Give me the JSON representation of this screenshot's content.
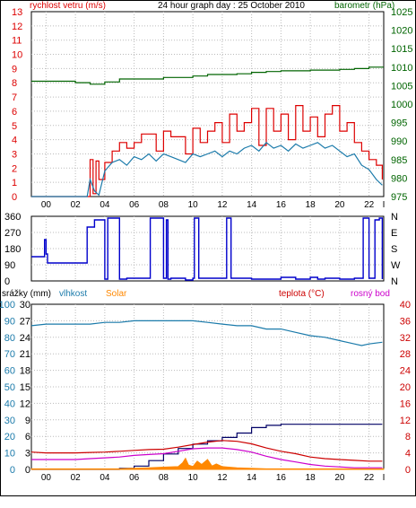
{
  "chart_data": [
    {
      "id": "wind_pressure",
      "type": "line",
      "title": "24 hour graph day : 25 October 2010",
      "ylabel_left": "rychlost vetru (m/s)",
      "ylabel_right": "barometr (hPa)",
      "ylim_left": [
        0,
        13
      ],
      "ylim_right": [
        975,
        1025
      ],
      "left_ticks": [
        "0",
        "1",
        "2",
        "3",
        "4",
        "5",
        "6",
        "7",
        "8",
        "9",
        "10",
        "11",
        "12",
        "13"
      ],
      "right_ticks": [
        "975",
        "980",
        "985",
        "990",
        "995",
        "1000",
        "1005",
        "1010",
        "1015",
        "1020",
        "1025"
      ],
      "x_ticks": [
        "00",
        "02",
        "04",
        "06",
        "08",
        "10",
        "12",
        "14",
        "16",
        "18",
        "20",
        "22",
        "I"
      ],
      "colors": {
        "gust": "#dd0000",
        "wind": "#1a7aaa",
        "pressure": "#006400",
        "left_axis": "#dd0000",
        "right_axis": "#006400"
      },
      "series": [
        {
          "key": "gust",
          "axis": "left",
          "x": [
            0,
            3.8,
            4,
            4.2,
            4.4,
            4.6,
            5,
            5.5,
            6,
            6.5,
            7,
            7.5,
            8,
            8.5,
            9,
            9.5,
            10,
            10.5,
            11,
            11.5,
            12,
            12.5,
            13,
            13.5,
            14,
            14.5,
            15,
            15.5,
            16,
            16.5,
            17,
            17.5,
            18,
            18.5,
            19,
            19.5,
            20,
            20.5,
            21,
            21.5,
            22,
            22.5,
            23,
            23.5,
            23.9
          ],
          "y": [
            0,
            0,
            2.6,
            0.2,
            2.5,
            1.2,
            2.4,
            3.2,
            3.8,
            3.4,
            3.8,
            4.4,
            4.4,
            3.2,
            4.6,
            4.2,
            4.2,
            3.0,
            4.8,
            3.8,
            4.6,
            5.2,
            3.8,
            5.8,
            4.6,
            5.2,
            6.2,
            3.6,
            6.2,
            4.6,
            5.8,
            4.0,
            6.4,
            4.6,
            5.6,
            4.2,
            5.8,
            6.4,
            4.6,
            5.2,
            3.8,
            3.2,
            2.6,
            2.2,
            1.2
          ]
        },
        {
          "key": "wind",
          "axis": "left",
          "x": [
            0,
            3.8,
            4,
            4.3,
            4.6,
            5,
            5.5,
            6,
            6.5,
            7,
            7.5,
            8,
            8.5,
            9,
            9.5,
            10,
            10.5,
            11,
            11.5,
            12,
            12.5,
            13,
            13.5,
            14,
            14.5,
            15,
            15.5,
            16,
            16.5,
            17,
            17.5,
            18,
            18.5,
            19,
            19.5,
            20,
            20.5,
            21,
            21.5,
            22,
            22.5,
            23,
            23.5,
            23.9
          ],
          "y": [
            0,
            0,
            1.2,
            0.4,
            0.1,
            1.8,
            2.4,
            2.6,
            2.2,
            2.8,
            2.6,
            3.0,
            2.5,
            3.0,
            2.8,
            2.6,
            2.4,
            3.0,
            2.8,
            3.0,
            3.2,
            2.8,
            3.2,
            3.0,
            3.4,
            3.6,
            3.2,
            3.8,
            3.4,
            3.6,
            3.2,
            3.7,
            3.4,
            3.6,
            3.8,
            3.4,
            3.6,
            3.2,
            2.8,
            3.0,
            2.2,
            1.9,
            1.2,
            0.8
          ]
        },
        {
          "key": "pressure",
          "axis": "right",
          "x": [
            0,
            2,
            3,
            4,
            5,
            6,
            7,
            8,
            9,
            10,
            11,
            12,
            13,
            14,
            15,
            16,
            17,
            18,
            19,
            20,
            21,
            22,
            23,
            24
          ],
          "y": [
            1006.2,
            1006.2,
            1005.8,
            1005.4,
            1006.0,
            1006.8,
            1006.8,
            1006.8,
            1007.2,
            1007.2,
            1007.6,
            1008.0,
            1008.0,
            1008.2,
            1008.6,
            1008.8,
            1009.0,
            1009.0,
            1009.2,
            1009.2,
            1009.4,
            1009.6,
            1010.0,
            1010.0
          ]
        }
      ]
    },
    {
      "id": "wind_direction",
      "type": "line",
      "ylim": [
        0,
        360
      ],
      "left_ticks": [
        "0",
        "90",
        "180",
        "270",
        "360"
      ],
      "right_ticks": [
        "N",
        "E",
        "S",
        "W",
        "N"
      ],
      "x_ticks": [
        "00",
        "02",
        "04",
        "06",
        "08",
        "10",
        "12",
        "14",
        "16",
        "18",
        "20",
        "22",
        "I"
      ],
      "colors": {
        "direction": "#0000cc"
      },
      "series": [
        {
          "key": "direction",
          "x": [
            0,
            0.8,
            0.9,
            1.0,
            1.1,
            3.6,
            3.8,
            4.3,
            4.9,
            5.0,
            5.2,
            6.0,
            6.5,
            8.0,
            8.1,
            8.8,
            9.0,
            9.2,
            9.3,
            9.5,
            10.0,
            10.5,
            11.0,
            11.1,
            11.4,
            13.2,
            13.3,
            13.6,
            14.0,
            15.0,
            17.0,
            18.0,
            19.0,
            19.5,
            20.0,
            21.0,
            22.0,
            22.5,
            22.6,
            22.9,
            23.0,
            23.3,
            23.4,
            23.7,
            23.9
          ],
          "y": [
            135,
            135,
            230,
            150,
            100,
            100,
            300,
            340,
            340,
            10,
            350,
            10,
            15,
            15,
            350,
            350,
            15,
            340,
            10,
            15,
            15,
            5,
            15,
            350,
            15,
            15,
            350,
            15,
            15,
            10,
            20,
            10,
            20,
            10,
            15,
            10,
            15,
            15,
            350,
            350,
            15,
            15,
            340,
            350,
            10
          ]
        }
      ]
    },
    {
      "id": "rain_humidity_temp",
      "type": "line",
      "left_label_rain": "srážky (mm)",
      "left_label_hum": "vlhkost",
      "label_solar": "Solar",
      "right_label_temp": "teplota (°C)",
      "right_label_dew": "rosný bod",
      "rain_ticks": [
        "0",
        "3",
        "6",
        "9",
        "12",
        "15",
        "18",
        "21",
        "24",
        "27",
        "30"
      ],
      "hum_ticks": [
        "0",
        "10",
        "20",
        "30",
        "40",
        "50",
        "60",
        "70",
        "80",
        "90",
        "100"
      ],
      "temp_ticks": [
        "0",
        "4",
        "8",
        "12",
        "16",
        "20",
        "24",
        "28",
        "32",
        "36",
        "40"
      ],
      "x_ticks": [
        "00",
        "02",
        "04",
        "06",
        "08",
        "10",
        "12",
        "14",
        "16",
        "18",
        "20",
        "22",
        "I"
      ],
      "ylim_rain": [
        0,
        30
      ],
      "ylim_hum": [
        0,
        100
      ],
      "ylim_temp": [
        0,
        40
      ],
      "colors": {
        "rain": "#000066",
        "humidity": "#1a7aaa",
        "solar": "#ff8800",
        "temp": "#cc0000",
        "dew": "#cc00cc",
        "rain_label": "#000000",
        "hum_label": "#1a7aaa",
        "solar_label": "#ff8800",
        "temp_label": "#cc0000",
        "dew_label": "#cc00cc"
      },
      "series": [
        {
          "key": "humidity",
          "axis": "hum",
          "x": [
            0,
            1,
            2,
            3,
            4,
            5,
            6,
            7,
            8,
            9,
            10,
            11,
            12,
            13,
            14,
            15,
            16,
            17,
            18,
            19,
            20,
            21,
            22,
            22.5,
            23,
            23.9
          ],
          "y": [
            87,
            88,
            88,
            88,
            88,
            89,
            89,
            90,
            90,
            90,
            90,
            90,
            89,
            88,
            87,
            87,
            85,
            85,
            83,
            81,
            80,
            78,
            76,
            75,
            76,
            77
          ]
        },
        {
          "key": "rain",
          "axis": "rain",
          "x": [
            0,
            4,
            5,
            6,
            7,
            8,
            9,
            10,
            11,
            12,
            13,
            14,
            15,
            16,
            17,
            18,
            19,
            20,
            21,
            22,
            23,
            23.9
          ],
          "y": [
            0,
            0,
            0,
            0.2,
            0.6,
            1.6,
            2.8,
            3.8,
            4.6,
            5.2,
            5.8,
            6.6,
            7.6,
            8.0,
            8.2,
            8.2,
            8.2,
            8.2,
            8.2,
            8.2,
            8.2,
            8.2
          ]
        },
        {
          "key": "temp",
          "axis": "temp",
          "x": [
            0,
            1,
            2,
            3,
            4,
            5,
            6,
            7,
            8,
            9,
            10,
            11,
            12,
            13,
            14,
            15,
            16,
            17,
            18,
            19,
            20,
            21,
            22,
            23,
            23.9
          ],
          "y": [
            4.2,
            4.0,
            4.0,
            4.0,
            4.1,
            4.2,
            4.4,
            4.6,
            4.8,
            4.9,
            5.4,
            6.0,
            6.6,
            7.0,
            6.8,
            6.2,
            5.2,
            4.4,
            3.8,
            3.0,
            2.6,
            2.4,
            2.2,
            2.0,
            2.0
          ]
        },
        {
          "key": "dew",
          "axis": "temp",
          "x": [
            0,
            1,
            2,
            3,
            4,
            5,
            6,
            7,
            8,
            9,
            10,
            11,
            12,
            13,
            14,
            15,
            16,
            17,
            18,
            19,
            20,
            21,
            22,
            23,
            23.9
          ],
          "y": [
            2.4,
            2.4,
            2.4,
            2.4,
            2.6,
            2.8,
            3.0,
            3.4,
            3.6,
            3.8,
            4.4,
            5.0,
            5.2,
            5.2,
            4.8,
            4.2,
            3.2,
            2.4,
            1.8,
            1.2,
            0.8,
            0.6,
            0.4,
            0.4,
            0.4
          ]
        },
        {
          "key": "solar",
          "axis": "rain",
          "x": [
            0,
            6,
            7,
            8,
            9,
            10,
            10.3,
            10.5,
            10.7,
            11,
            11.3,
            11.6,
            12,
            12.3,
            12.6,
            13,
            14,
            16,
            24
          ],
          "y": [
            0.1,
            0.1,
            0.2,
            0.3,
            0.4,
            0.5,
            1.2,
            2.0,
            0.8,
            0.5,
            1.5,
            0.9,
            1.8,
            0.6,
            1.0,
            0.5,
            0.3,
            0.1,
            0.1
          ]
        }
      ]
    }
  ]
}
